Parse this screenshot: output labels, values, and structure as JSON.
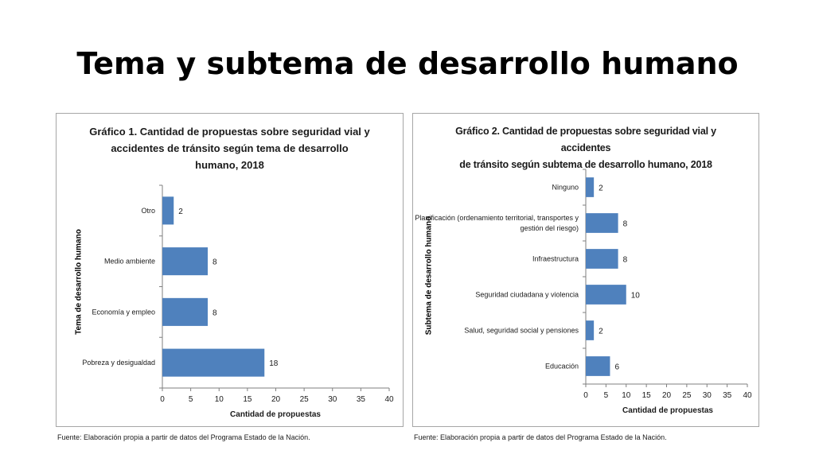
{
  "slide": {
    "title": "Tema y subtema de desarrollo humano"
  },
  "charts": [
    {
      "title_lines": [
        "Gráfico 1.  Cantidad de propuestas sobre seguridad vial y",
        "accidentes de tránsito según tema de desarrollo",
        "humano, 2018"
      ],
      "source": "Fuente: Elaboración propia a partir de datos del Programa Estado de la Nación."
    },
    {
      "title_lines": [
        "Gráfico 2. Cantidad de propuestas sobre seguridad vial y accidentes",
        "de tránsito según subtema de desarrollo humano, 2018"
      ],
      "source": "Fuente: Elaboración propia a partir de datos del Programa Estado de la Nación."
    }
  ],
  "chart_data": [
    {
      "type": "bar",
      "orientation": "horizontal",
      "title": "Gráfico 1.  Cantidad de propuestas sobre seguridad vial y accidentes de tránsito según tema de desarrollo humano, 2018",
      "categories": [
        "Otro",
        "Medio ambiente",
        "Economía y empleo",
        "Pobreza y desigualdad"
      ],
      "values": [
        2,
        8,
        8,
        18
      ],
      "xlabel": "Cantidad  de propuestas",
      "ylabel": "Tema de desarrollo  humano",
      "xlim": [
        0,
        40
      ],
      "xticks": [
        0,
        5,
        10,
        15,
        20,
        25,
        30,
        35,
        40
      ],
      "bar_color": "#4f81bd",
      "grid": false
    },
    {
      "type": "bar",
      "orientation": "horizontal",
      "title": "Gráfico 2. Cantidad de propuestas sobre seguridad vial y accidentes de tránsito según subtema de desarrollo humano, 2018",
      "categories": [
        "Ninguno",
        [
          "Planificación (ordenamiento territorial, transportes y",
          "gestión del riesgo)"
        ],
        "Infraestructura",
        "Seguridad ciudadana y violencia",
        "Salud, seguridad social y pensiones",
        "Educación"
      ],
      "values": [
        2,
        8,
        8,
        10,
        2,
        6
      ],
      "xlabel": "Cantidad de propuestas",
      "ylabel": "Subtema de desarrollo  humano",
      "xlim": [
        0,
        40
      ],
      "xticks": [
        0,
        5,
        10,
        15,
        20,
        25,
        30,
        35,
        40
      ],
      "bar_color": "#4f81bd",
      "grid": false
    }
  ]
}
